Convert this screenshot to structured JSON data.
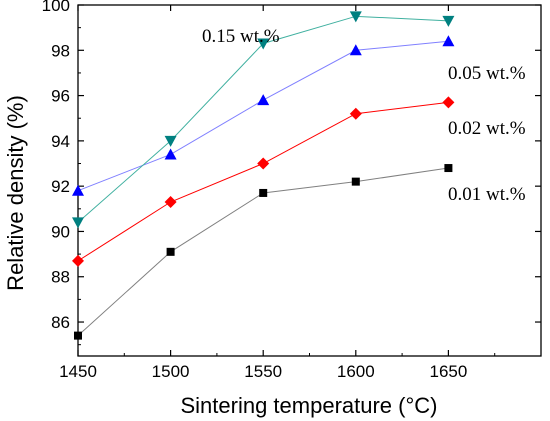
{
  "chart_data": {
    "type": "line",
    "xlabel": "Sintering temperature (°C)",
    "ylabel": "Relative density (%)",
    "x": [
      1450,
      1500,
      1550,
      1600,
      1650
    ],
    "xticks": [
      "1450",
      "1500",
      "1550",
      "1600",
      "1650"
    ],
    "yticks": [
      "86",
      "88",
      "90",
      "92",
      "94",
      "96",
      "98",
      "100"
    ],
    "xlim": [
      1450,
      1700
    ],
    "ylim": [
      84.5,
      100
    ],
    "grid": false,
    "legend": "none (series labelled inline)",
    "series": [
      {
        "name": "0.01 wt.%",
        "values": [
          85.4,
          89.1,
          91.7,
          92.2,
          92.8
        ],
        "color": "#000000",
        "line_color": "#808080",
        "marker": "square"
      },
      {
        "name": "0.02 wt.%",
        "values": [
          88.7,
          91.3,
          93.0,
          95.2,
          95.7
        ],
        "color": "#ff0000",
        "line_color": "#ff0000",
        "marker": "diamond"
      },
      {
        "name": "0.05 wt.%",
        "values": [
          91.8,
          93.4,
          95.8,
          98.0,
          98.4
        ],
        "color": "#0000ff",
        "line_color": "#8080ff",
        "marker": "triangle-up"
      },
      {
        "name": "0.15 wt.%",
        "values": [
          90.4,
          94.0,
          98.3,
          99.5,
          99.3
        ],
        "color": "#008080",
        "line_color": "#40b0a0",
        "marker": "triangle-down"
      }
    ]
  }
}
